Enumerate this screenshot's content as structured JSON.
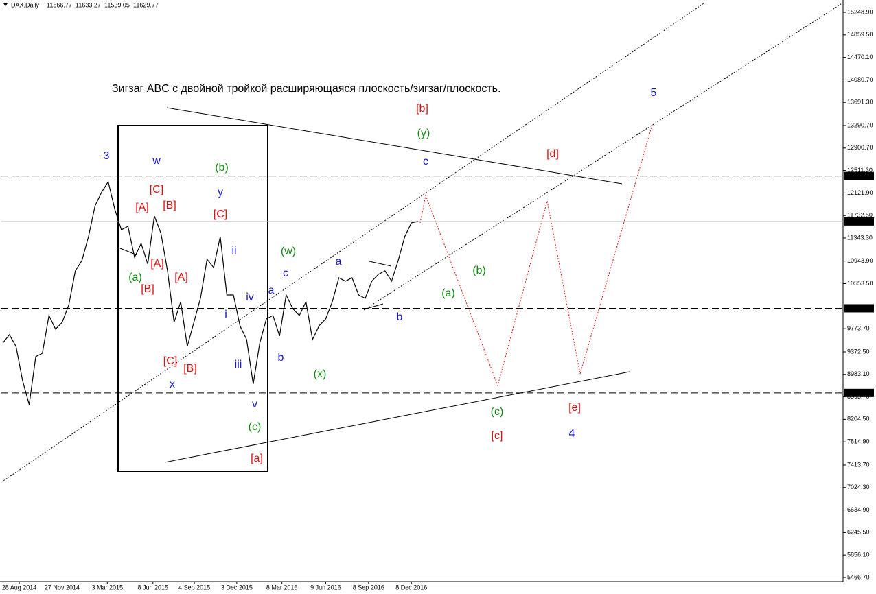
{
  "chart_data": {
    "type": "line",
    "symbol": "DAX,Daily",
    "ohlc": [
      11566.77,
      11633.27,
      11539.05,
      11629.77
    ],
    "x": [
      "2014-07-24",
      "2014-08-07",
      "2014-08-21",
      "2014-09-04",
      "2014-09-18",
      "2014-10-02",
      "2014-10-16",
      "2014-10-30",
      "2014-11-13",
      "2014-11-27",
      "2014-12-11",
      "2014-12-25",
      "2015-01-08",
      "2015-01-22",
      "2015-02-05",
      "2015-02-19",
      "2015-03-05",
      "2015-03-19",
      "2015-04-02",
      "2015-04-16",
      "2015-04-30",
      "2015-05-14",
      "2015-05-28",
      "2015-06-11",
      "2015-06-25",
      "2015-07-09",
      "2015-07-23",
      "2015-08-06",
      "2015-08-20",
      "2015-09-03",
      "2015-09-17",
      "2015-10-01",
      "2015-10-15",
      "2015-10-29",
      "2015-11-12",
      "2015-11-26",
      "2015-12-10",
      "2015-12-24",
      "2016-01-07",
      "2016-01-21",
      "2016-02-04",
      "2016-02-18",
      "2016-03-03",
      "2016-03-17",
      "2016-03-31",
      "2016-04-14",
      "2016-04-28",
      "2016-05-12",
      "2016-05-26",
      "2016-06-09",
      "2016-06-23",
      "2016-07-07",
      "2016-07-21",
      "2016-08-04",
      "2016-08-18",
      "2016-09-01",
      "2016-09-15",
      "2016-09-29",
      "2016-10-13",
      "2016-10-27",
      "2016-11-10",
      "2016-11-24",
      "2016-12-08",
      "2016-12-22"
    ],
    "values": [
      9527,
      9670,
      9468,
      8874,
      8459,
      9290,
      9349,
      10002,
      9765,
      9883,
      10180,
      10774,
      10952,
      11367,
      11901,
      12139,
      12317,
      11842,
      11486,
      11545,
      11011,
      11248,
      10892,
      11723,
      11427,
      10774,
      9883,
      10239,
      9468,
      9883,
      10299,
      10975,
      10833,
      11367,
      10358,
      10358,
      9824,
      9587,
      8815,
      9527,
      9943,
      10002,
      9646,
      10358,
      10121,
      10002,
      10239,
      9587,
      9824,
      9943,
      10239,
      10655,
      10596,
      10655,
      10358,
      10299,
      10596,
      10714,
      10774,
      10596,
      10952,
      11367,
      11605,
      11629.77
    ],
    "color": "#000000",
    "xlim": [
      "2014-07-21",
      "2019-06-13"
    ],
    "xticks": [
      {
        "value": "2014-08-28",
        "label": "28 Aug 2014"
      },
      {
        "value": "2014-11-27",
        "label": "27 Nov 2014"
      },
      {
        "value": "2015-03-03",
        "label": "3 Mar 2015"
      },
      {
        "value": "2015-06-08",
        "label": "8 Jun 2015"
      },
      {
        "value": "2015-09-04",
        "label": "4 Sep 2015"
      },
      {
        "value": "2015-12-03",
        "label": "3 Dec 2015"
      },
      {
        "value": "2016-03-08",
        "label": "8 Mar 2016"
      },
      {
        "value": "2016-06-09",
        "label": "9 Jun 2016"
      },
      {
        "value": "2016-09-08",
        "label": "8 Sep 2016"
      },
      {
        "value": "2016-12-08",
        "label": "8 Dec 2016"
      }
    ],
    "ylim": [
      5395,
      15463
    ],
    "yticks": [
      {
        "value": 15248.9,
        "label": "15248.90"
      },
      {
        "value": 14859.5,
        "label": "14859.50"
      },
      {
        "value": 14470.1,
        "label": "14470.10"
      },
      {
        "value": 14080.7,
        "label": "14080.70"
      },
      {
        "value": 13691.3,
        "label": "13691.30"
      },
      {
        "value": 13290.7,
        "label": "13290.70"
      },
      {
        "value": 12900.7,
        "label": "12900.70"
      },
      {
        "value": 12511.3,
        "label": "12511.30"
      },
      {
        "value": 12121.9,
        "label": "12121.90"
      },
      {
        "value": 11732.5,
        "label": "11732.50"
      },
      {
        "value": 11343.3,
        "label": "11343.30"
      },
      {
        "value": 10943.9,
        "label": "10943.90"
      },
      {
        "value": 10553.5,
        "label": "10553.50"
      },
      {
        "value": 9773.7,
        "label": "9773.70"
      },
      {
        "value": 9372.5,
        "label": "9372.50"
      },
      {
        "value": 8983.1,
        "label": "8983.10"
      },
      {
        "value": 8593.7,
        "label": "8593.70"
      },
      {
        "value": 8204.5,
        "label": "8204.50"
      },
      {
        "value": 7814.9,
        "label": "7814.90"
      },
      {
        "value": 7413.7,
        "label": "7413.70"
      },
      {
        "value": 7024.3,
        "label": "7024.30"
      },
      {
        "value": 6634.9,
        "label": "6634.90"
      },
      {
        "value": 6245.5,
        "label": "6245.50"
      },
      {
        "value": 5856.1,
        "label": "5856.10"
      },
      {
        "value": 5466.7,
        "label": "5466.70"
      }
    ],
    "levels": [
      12415.45,
      10126.72,
      {
        "value": 8661.9,
        "label": "8661.90"
      }
    ],
    "current_price": 11629.77,
    "annotations": [
      {
        "text": "Зигзаг ABC с двойной тройкой расширяющаяся плоскость/зигзаг/плоскость.",
        "color": "#000000"
      },
      {
        "text": "3",
        "color": "#1414d8"
      },
      {
        "text": "w",
        "color": "#1414d8"
      },
      {
        "text": "[C]",
        "color": "#e01010"
      },
      {
        "text": "[A]",
        "color": "#e01010"
      },
      {
        "text": "[B]",
        "color": "#e01010"
      },
      {
        "text": "(b)",
        "color": "#118811"
      },
      {
        "text": "y",
        "color": "#1414d8"
      },
      {
        "text": "[C]",
        "color": "#e01010"
      },
      {
        "text": "ii",
        "color": "#1414d8"
      },
      {
        "text": "(a)",
        "color": "#118811"
      },
      {
        "text": "[A]",
        "color": "#e01010"
      },
      {
        "text": "[B]",
        "color": "#e01010"
      },
      {
        "text": "[A]",
        "color": "#e01010"
      },
      {
        "text": "i",
        "color": "#1414d8"
      },
      {
        "text": "iv",
        "color": "#1414d8"
      },
      {
        "text": "a",
        "color": "#1414d8"
      },
      {
        "text": "c",
        "color": "#1414d8"
      },
      {
        "text": "(w)",
        "color": "#118811"
      },
      {
        "text": "a",
        "color": "#1414d8"
      },
      {
        "text": "[C]",
        "color": "#e01010"
      },
      {
        "text": "[B]",
        "color": "#e01010"
      },
      {
        "text": "x",
        "color": "#1414d8"
      },
      {
        "text": "iii",
        "color": "#1414d8"
      },
      {
        "text": "b",
        "color": "#1414d8"
      },
      {
        "text": "(x)",
        "color": "#118811"
      },
      {
        "text": "v",
        "color": "#1414d8"
      },
      {
        "text": "(c)",
        "color": "#118811"
      },
      {
        "text": "[a]",
        "color": "#e01010"
      },
      {
        "text": "b",
        "color": "#1414d8"
      },
      {
        "text": "(a)",
        "color": "#118811"
      },
      {
        "text": "(b)",
        "color": "#118811"
      },
      {
        "text": "c",
        "color": "#1414d8"
      },
      {
        "text": "(y)",
        "color": "#118811"
      },
      {
        "text": "[b]",
        "color": "#e01010"
      },
      {
        "text": "[d]",
        "color": "#e01010"
      },
      {
        "text": "5",
        "color": "#1414d8"
      },
      {
        "text": "(c)",
        "color": "#118811"
      },
      {
        "text": "[c]",
        "color": "#e01010"
      },
      {
        "text": "[e]",
        "color": "#e01010"
      },
      {
        "text": "4",
        "color": "#1414d8"
      }
    ]
  }
}
